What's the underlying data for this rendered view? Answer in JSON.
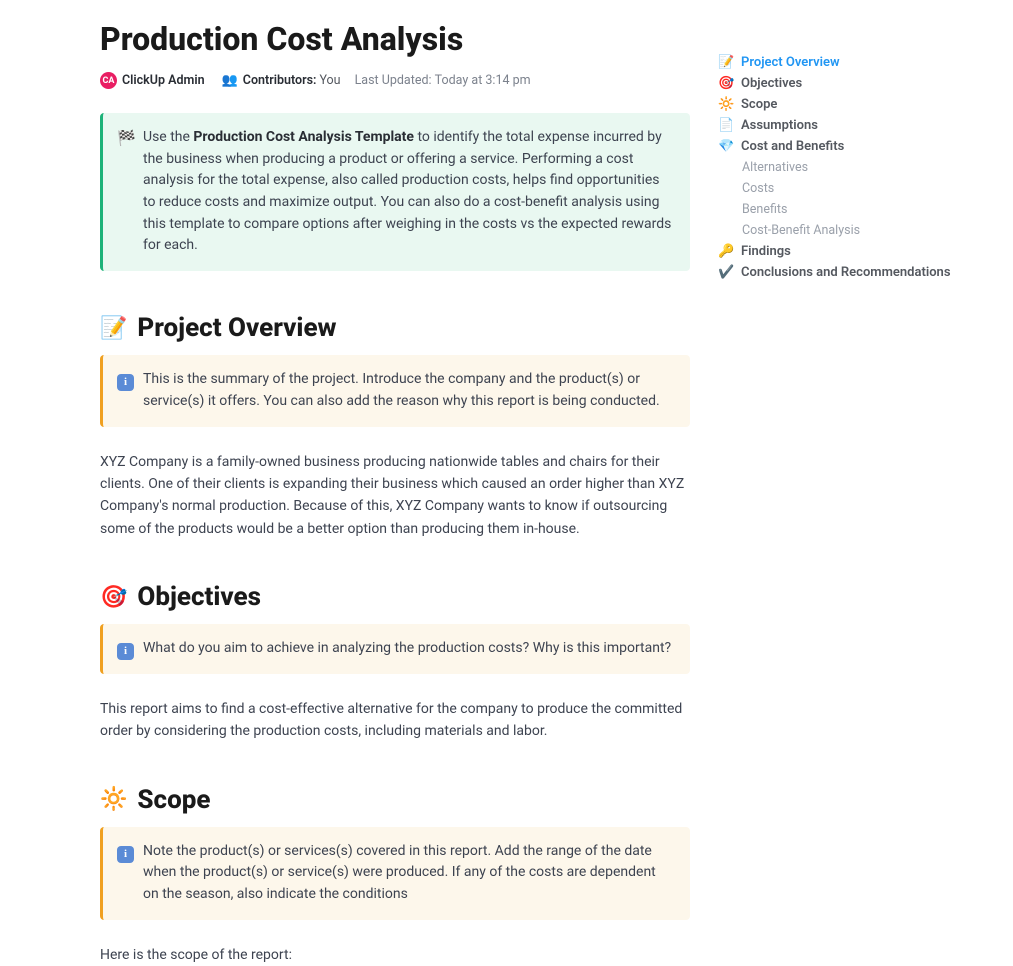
{
  "title": "Production Cost Analysis",
  "meta": {
    "avatar_initials": "CA",
    "avatar_color": "#e91e63",
    "author": "ClickUp Admin",
    "contributors_label": "Contributors:",
    "contributors_value": "You",
    "updated_label": "Last Updated:",
    "updated_value": "Today at 3:14 pm"
  },
  "intro_callout": {
    "icon": "🏁",
    "prefix": "Use the ",
    "bold": "Production Cost Analysis Template",
    "rest": " to identify the total expense incurred by the business when producing a product or offering a service. Performing a cost analysis for the total expense, also called production costs, helps find opportunities to reduce costs and maximize output. You can also do a cost-benefit analysis using this template to compare options after weighing in the costs vs the expected rewards for each."
  },
  "sections": {
    "overview": {
      "icon": "📝",
      "title": "Project Overview",
      "callout": "This is the summary of the project. Introduce the company and the product(s) or service(s) it offers. You can also add the reason why this report is being conducted.",
      "body": "XYZ Company is a family-owned business producing nationwide tables and chairs for their clients. One of their clients is expanding their business which caused an order higher than XYZ Company's normal production. Because of this, XYZ Company wants to know if outsourcing some of the products would be a better option than producing them in-house."
    },
    "objectives": {
      "icon": "🎯",
      "title": "Objectives",
      "callout": "What do you aim to achieve in analyzing the production costs? Why is this important?",
      "body": "This report aims to find a cost-effective alternative for the company to produce the committed order by considering the production costs, including materials and labor."
    },
    "scope": {
      "icon": "🔆",
      "title": "Scope",
      "callout": "Note the product(s) or services(s) covered in this report. Add the range of the date when the product(s) or service(s) were produced. If any of the costs are dependent on the season, also indicate the conditions",
      "body": "Here is the scope of the report:"
    }
  },
  "toc": [
    {
      "icon": "📝",
      "label": "Project Overview",
      "active": true
    },
    {
      "icon": "🎯",
      "label": "Objectives"
    },
    {
      "icon": "🔆",
      "label": "Scope"
    },
    {
      "icon": "📄",
      "label": "Assumptions"
    },
    {
      "icon": "💎",
      "label": "Cost and Benefits",
      "children": [
        "Alternatives",
        "Costs",
        "Benefits",
        "Cost-Benefit Analysis"
      ]
    },
    {
      "icon": "🔑",
      "label": "Findings"
    },
    {
      "icon": "✔️",
      "label": "Conclusions and Recommendations"
    }
  ],
  "colors": {
    "callout_green_bg": "#e9f8f1",
    "callout_green_border": "#1db279",
    "callout_yellow_bg": "#fdf7eb",
    "callout_yellow_border": "#f0a020",
    "toc_active": "#2196f3",
    "text_primary": "#292d34",
    "text_body": "#3d4350",
    "text_muted": "#7c828d"
  }
}
